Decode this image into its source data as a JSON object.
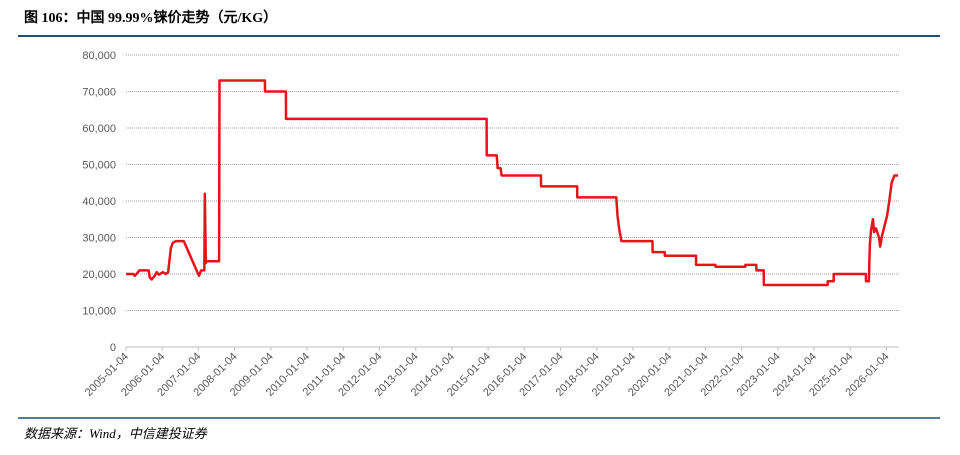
{
  "chart_data": {
    "type": "line",
    "title": "图 106：中国 99.99%铼价走势（元/KG）",
    "source": "数据来源：Wind，中信建投证券",
    "x": [
      "2005-01-04",
      "2005-03-20",
      "2005-04-01",
      "2005-04-20",
      "2005-05-20",
      "2005-08-20",
      "2005-09-01",
      "2005-09-20",
      "2005-10-20",
      "2005-11-10",
      "2005-12-01",
      "2006-01-10",
      "2006-02-10",
      "2006-03-05",
      "2006-04-01",
      "2006-04-20",
      "2006-05-20",
      "2006-08-10",
      "2007-01-10",
      "2007-02-01",
      "2007-03-05",
      "2007-03-10",
      "2007-03-20",
      "2007-04-01",
      "2007-08-01",
      "2007-08-05",
      "2008-11-05",
      "2008-11-06",
      "2009-06-05",
      "2009-06-06",
      "2014-12-20",
      "2014-12-21",
      "2015-04-01",
      "2015-04-10",
      "2015-05-10",
      "2015-05-20",
      "2016-06-20",
      "2016-06-21",
      "2017-06-20",
      "2017-06-21",
      "2018-07-20",
      "2018-08-01",
      "2018-08-20",
      "2018-09-10",
      "2019-07-20",
      "2019-07-21",
      "2019-11-20",
      "2019-11-21",
      "2020-10-01",
      "2020-10-02",
      "2021-04-15",
      "2021-04-16",
      "2022-02-10",
      "2022-02-11",
      "2022-06-01",
      "2022-06-02",
      "2022-08-15",
      "2022-08-16",
      "2024-05-20",
      "2024-05-21",
      "2024-07-20",
      "2024-07-21",
      "2025-06-10",
      "2025-06-11",
      "2025-07-10",
      "2025-07-20",
      "2025-08-01",
      "2025-08-20",
      "2025-09-01",
      "2025-09-20",
      "2025-10-20",
      "2025-11-01",
      "2025-11-20",
      "2026-01-10",
      "2026-02-01",
      "2026-02-25",
      "2026-03-25",
      "2026-05-01"
    ],
    "series": [
      {
        "color": "#e8121b",
        "values": [
          20000,
          20000,
          19500,
          20000,
          21000,
          21000,
          19000,
          18500,
          19500,
          20500,
          19800,
          20500,
          20000,
          20500,
          27000,
          28500,
          29000,
          29000,
          19500,
          21000,
          21000,
          42000,
          23000,
          23500,
          23500,
          73000,
          73000,
          70000,
          70000,
          62500,
          62500,
          52500,
          52500,
          49000,
          49000,
          47000,
          47000,
          44000,
          44000,
          41000,
          41000,
          36000,
          32000,
          29000,
          29000,
          26000,
          26000,
          25000,
          25000,
          22500,
          22500,
          22000,
          22000,
          22500,
          22500,
          21000,
          21000,
          17000,
          17000,
          18000,
          18000,
          20000,
          20000,
          18000,
          18000,
          28000,
          32000,
          35000,
          31500,
          32500,
          30000,
          27500,
          30500,
          36000,
          40000,
          45000,
          47000,
          47000
        ]
      }
    ],
    "xlim": [
      "2005-01-04",
      "2026-05-10"
    ],
    "xticks": [
      "2005-01-04",
      "2006-01-04",
      "2007-01-04",
      "2008-01-04",
      "2009-01-04",
      "2010-01-04",
      "2011-01-04",
      "2012-01-04",
      "2013-01-04",
      "2014-01-04",
      "2015-01-04",
      "2016-01-04",
      "2017-01-04",
      "2018-01-04",
      "2019-01-04",
      "2020-01-04",
      "2021-01-04",
      "2022-01-04",
      "2023-01-04",
      "2024-01-04",
      "2025-01-04",
      "2026-01-04"
    ],
    "ylim": [
      0,
      80000
    ],
    "yticks": [
      0,
      {
        "value": 10000,
        "label": "10,000"
      },
      {
        "value": 20000,
        "label": "20,000"
      },
      {
        "value": 30000,
        "label": "30,000"
      },
      {
        "value": 40000,
        "label": "40,000"
      },
      {
        "value": 50000,
        "label": "50,000"
      },
      {
        "value": 60000,
        "label": "60,000"
      },
      {
        "value": 70000,
        "label": "70,000"
      },
      {
        "value": 80000,
        "label": "80,000"
      }
    ],
    "grid": true
  }
}
